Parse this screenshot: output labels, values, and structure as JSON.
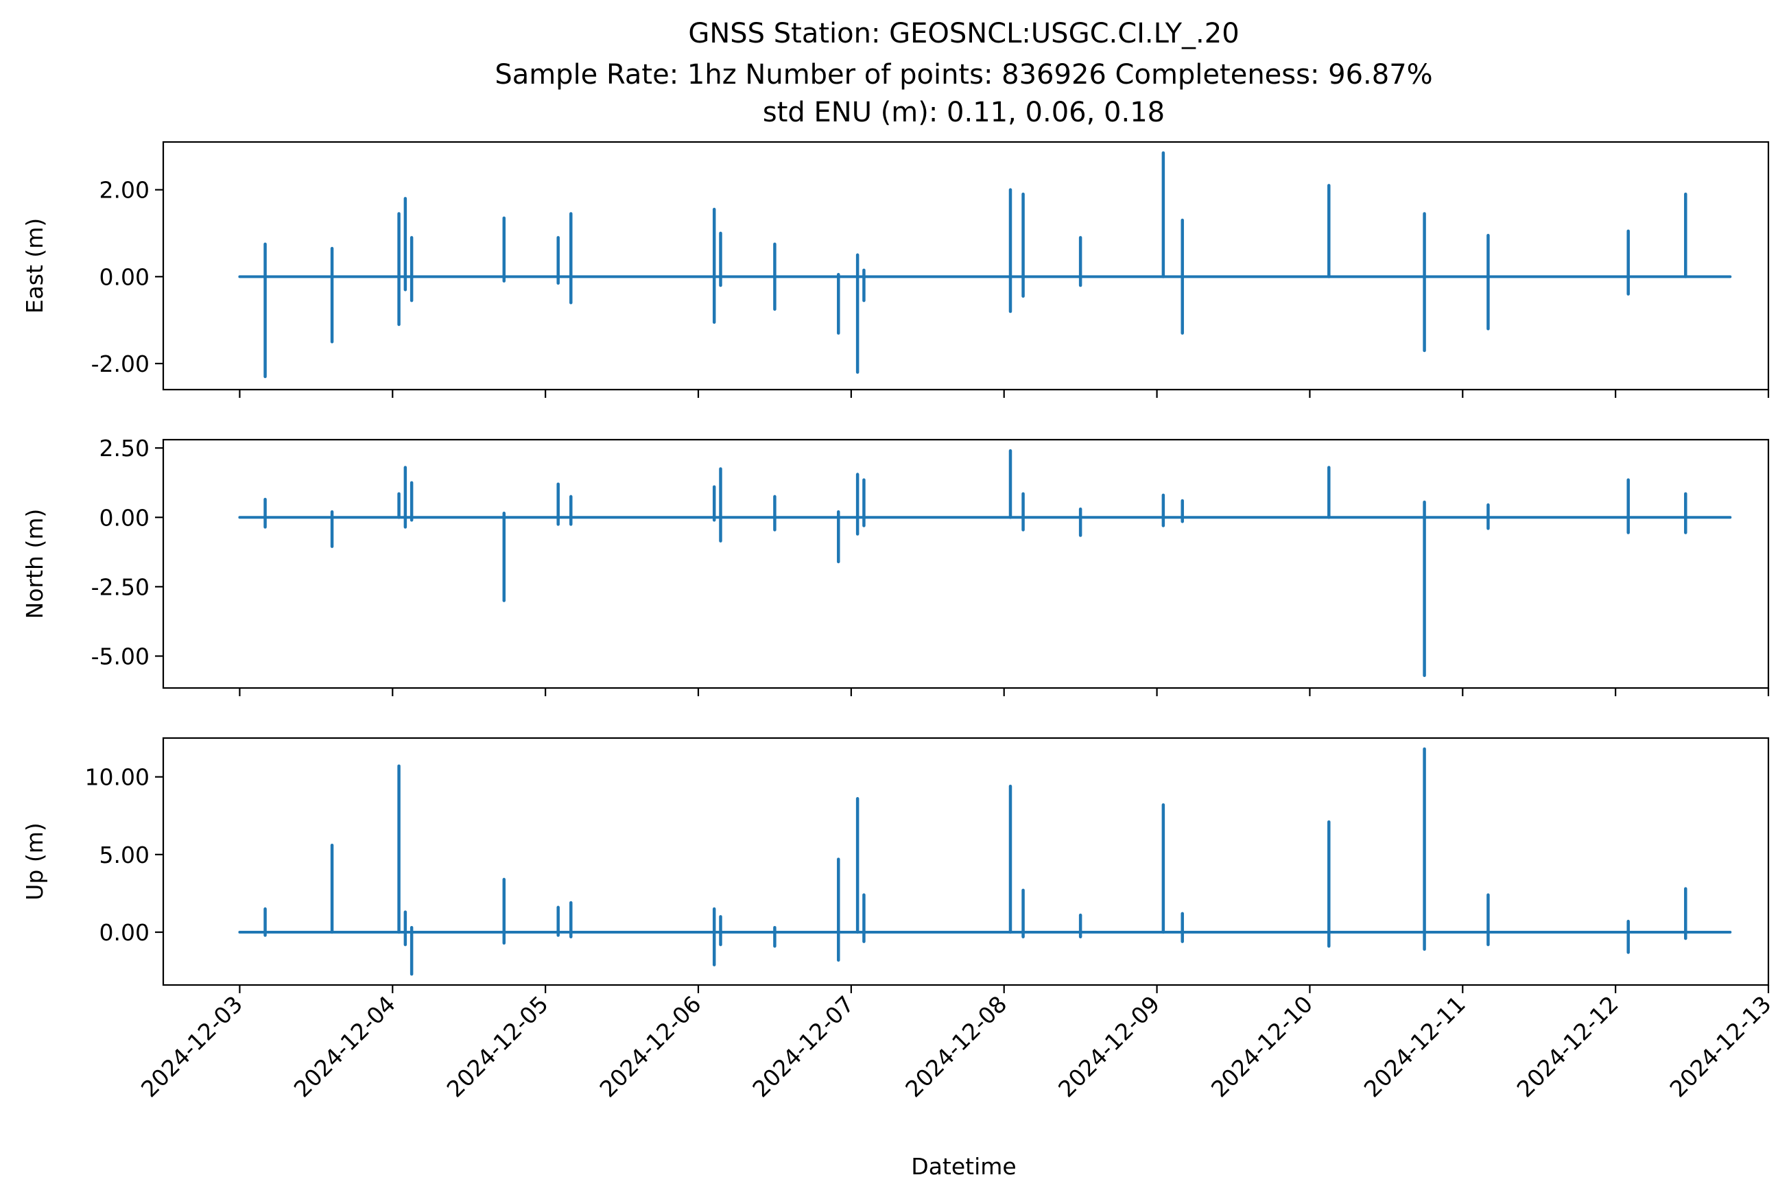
{
  "chart_data": {
    "type": "line",
    "title_lines": [
      "GNSS Station: GEOSNCL:USGC.CI.LY_.20",
      "Sample Rate: 1hz   Number of points: 836926    Completeness:  96.87%",
      "std ENU (m):  0.11, 0.06, 0.18"
    ],
    "xlabel": "Datetime",
    "x_ticks": [
      "2024-12-03",
      "2024-12-04",
      "2024-12-05",
      "2024-12-06",
      "2024-12-07",
      "2024-12-08",
      "2024-12-09",
      "2024-12-10",
      "2024-12-11",
      "2024-12-12",
      "2024-12-13"
    ],
    "xlim": [
      "2024-12-02T12:00",
      "2024-12-13T00:00"
    ],
    "x_range": [
      "2024-12-03T00:00",
      "2024-12-12T18:00"
    ],
    "series_color": "#1f77b4",
    "grid": false,
    "panels": [
      {
        "ylabel": "East (m)",
        "ylim": [
          -2.6,
          3.1
        ],
        "y_ticks": [
          -2,
          0,
          2
        ],
        "y_tick_labels": [
          "-2.00",
          "0.00",
          "2.00"
        ],
        "spikes": [
          {
            "time": "2024-12-03T04:00",
            "max": 0.75,
            "min": -2.3
          },
          {
            "time": "2024-12-03T14:30",
            "max": 0.65,
            "min": -1.5
          },
          {
            "time": "2024-12-04T01:00",
            "max": 1.45,
            "min": -1.1
          },
          {
            "time": "2024-12-04T02:00",
            "max": 1.8,
            "min": -0.3
          },
          {
            "time": "2024-12-04T03:00",
            "max": 0.9,
            "min": -0.55
          },
          {
            "time": "2024-12-04T17:30",
            "max": 1.35,
            "min": -0.1
          },
          {
            "time": "2024-12-05T02:00",
            "max": 0.9,
            "min": -0.15
          },
          {
            "time": "2024-12-05T04:00",
            "max": 1.45,
            "min": -0.6
          },
          {
            "time": "2024-12-06T02:30",
            "max": 1.55,
            "min": -1.05
          },
          {
            "time": "2024-12-06T03:30",
            "max": 1.0,
            "min": -0.2
          },
          {
            "time": "2024-12-06T12:00",
            "max": 0.75,
            "min": -0.75
          },
          {
            "time": "2024-12-06T22:00",
            "max": 0.05,
            "min": -1.3
          },
          {
            "time": "2024-12-07T01:00",
            "max": 0.5,
            "min": -2.2
          },
          {
            "time": "2024-12-07T02:00",
            "max": 0.15,
            "min": -0.55
          },
          {
            "time": "2024-12-08T01:00",
            "max": 2.0,
            "min": -0.8
          },
          {
            "time": "2024-12-08T03:00",
            "max": 1.9,
            "min": -0.45
          },
          {
            "time": "2024-12-08T12:00",
            "max": 0.9,
            "min": -0.2
          },
          {
            "time": "2024-12-09T01:00",
            "max": 2.85,
            "min": 0.0
          },
          {
            "time": "2024-12-09T04:00",
            "max": 1.3,
            "min": -1.3
          },
          {
            "time": "2024-12-10T03:00",
            "max": 2.1,
            "min": 0.0
          },
          {
            "time": "2024-12-10T18:00",
            "max": 1.45,
            "min": -1.7
          },
          {
            "time": "2024-12-11T04:00",
            "max": 0.95,
            "min": -1.2
          },
          {
            "time": "2024-12-12T02:00",
            "max": 1.05,
            "min": -0.4
          },
          {
            "time": "2024-12-12T11:00",
            "max": 1.9,
            "min": 0.0
          }
        ]
      },
      {
        "ylabel": "North (m)",
        "ylim": [
          -6.15,
          2.8
        ],
        "y_ticks": [
          -5,
          -2.5,
          0,
          2.5
        ],
        "y_tick_labels": [
          "-5.00",
          "-2.50",
          "0.00",
          "2.50"
        ],
        "spikes": [
          {
            "time": "2024-12-03T04:00",
            "max": 0.65,
            "min": -0.35
          },
          {
            "time": "2024-12-03T14:30",
            "max": 0.2,
            "min": -1.05
          },
          {
            "time": "2024-12-04T01:00",
            "max": 0.85,
            "min": 0.0
          },
          {
            "time": "2024-12-04T02:00",
            "max": 1.8,
            "min": -0.35
          },
          {
            "time": "2024-12-04T03:00",
            "max": 1.25,
            "min": -0.1
          },
          {
            "time": "2024-12-04T17:30",
            "max": 0.15,
            "min": -3.0
          },
          {
            "time": "2024-12-05T02:00",
            "max": 1.2,
            "min": -0.25
          },
          {
            "time": "2024-12-05T04:00",
            "max": 0.75,
            "min": -0.25
          },
          {
            "time": "2024-12-06T02:30",
            "max": 1.1,
            "min": -0.1
          },
          {
            "time": "2024-12-06T03:30",
            "max": 1.75,
            "min": -0.85
          },
          {
            "time": "2024-12-06T12:00",
            "max": 0.75,
            "min": -0.45
          },
          {
            "time": "2024-12-06T22:00",
            "max": 0.2,
            "min": -1.6
          },
          {
            "time": "2024-12-07T01:00",
            "max": 1.55,
            "min": -0.6
          },
          {
            "time": "2024-12-07T02:00",
            "max": 1.35,
            "min": -0.3
          },
          {
            "time": "2024-12-08T01:00",
            "max": 2.4,
            "min": 0.0
          },
          {
            "time": "2024-12-08T03:00",
            "max": 0.85,
            "min": -0.45
          },
          {
            "time": "2024-12-08T12:00",
            "max": 0.3,
            "min": -0.65
          },
          {
            "time": "2024-12-09T01:00",
            "max": 0.8,
            "min": -0.3
          },
          {
            "time": "2024-12-09T04:00",
            "max": 0.6,
            "min": -0.15
          },
          {
            "time": "2024-12-10T03:00",
            "max": 1.8,
            "min": 0.0
          },
          {
            "time": "2024-12-10T18:00",
            "max": 0.55,
            "min": -5.7
          },
          {
            "time": "2024-12-11T04:00",
            "max": 0.45,
            "min": -0.4
          },
          {
            "time": "2024-12-12T02:00",
            "max": 1.35,
            "min": -0.55
          },
          {
            "time": "2024-12-12T11:00",
            "max": 0.85,
            "min": -0.55
          }
        ]
      },
      {
        "ylabel": "Up (m)",
        "ylim": [
          -3.4,
          12.5
        ],
        "y_ticks": [
          0,
          5,
          10
        ],
        "y_tick_labels": [
          "0.00",
          "5.00",
          "10.00"
        ],
        "spikes": [
          {
            "time": "2024-12-03T04:00",
            "max": 1.5,
            "min": -0.2
          },
          {
            "time": "2024-12-03T14:30",
            "max": 5.6,
            "min": 0.0
          },
          {
            "time": "2024-12-04T01:00",
            "max": 10.7,
            "min": 0.0
          },
          {
            "time": "2024-12-04T02:00",
            "max": 1.3,
            "min": -0.8
          },
          {
            "time": "2024-12-04T03:00",
            "max": 0.3,
            "min": -2.7
          },
          {
            "time": "2024-12-04T17:30",
            "max": 3.4,
            "min": -0.7
          },
          {
            "time": "2024-12-05T02:00",
            "max": 1.6,
            "min": -0.2
          },
          {
            "time": "2024-12-05T04:00",
            "max": 1.9,
            "min": -0.3
          },
          {
            "time": "2024-12-06T02:30",
            "max": 1.5,
            "min": -2.1
          },
          {
            "time": "2024-12-06T03:30",
            "max": 1.0,
            "min": -0.8
          },
          {
            "time": "2024-12-06T12:00",
            "max": 0.3,
            "min": -0.9
          },
          {
            "time": "2024-12-06T22:00",
            "max": 4.7,
            "min": -1.8
          },
          {
            "time": "2024-12-07T01:00",
            "max": 8.6,
            "min": 0.0
          },
          {
            "time": "2024-12-07T02:00",
            "max": 2.4,
            "min": -0.6
          },
          {
            "time": "2024-12-08T01:00",
            "max": 9.4,
            "min": 0.0
          },
          {
            "time": "2024-12-08T03:00",
            "max": 2.7,
            "min": -0.3
          },
          {
            "time": "2024-12-08T12:00",
            "max": 1.1,
            "min": -0.3
          },
          {
            "time": "2024-12-09T01:00",
            "max": 8.2,
            "min": 0.0
          },
          {
            "time": "2024-12-09T04:00",
            "max": 1.2,
            "min": -0.6
          },
          {
            "time": "2024-12-10T03:00",
            "max": 7.1,
            "min": -0.9
          },
          {
            "time": "2024-12-10T18:00",
            "max": 11.8,
            "min": -1.1
          },
          {
            "time": "2024-12-11T04:00",
            "max": 2.4,
            "min": -0.8
          },
          {
            "time": "2024-12-12T02:00",
            "max": 0.7,
            "min": -1.3
          },
          {
            "time": "2024-12-12T11:00",
            "max": 2.8,
            "min": -0.4
          }
        ]
      }
    ]
  }
}
